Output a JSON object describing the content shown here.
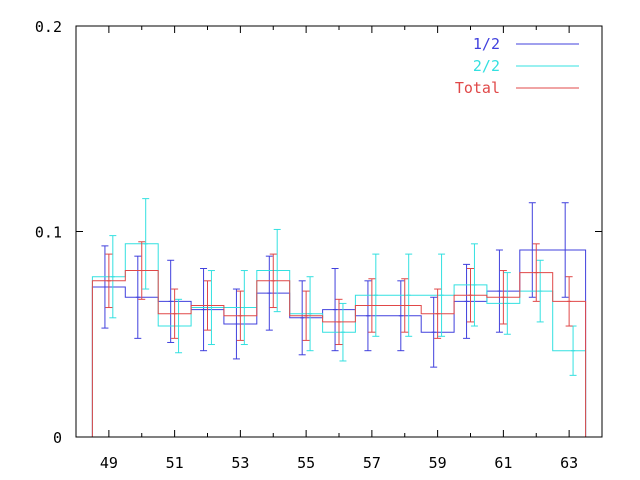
{
  "chart_data": {
    "type": "line",
    "style": "step histogram with error bars",
    "title": "",
    "xlabel": "",
    "ylabel": "",
    "xlim": [
      48,
      64
    ],
    "ylim": [
      0,
      0.2
    ],
    "x_ticks": [
      "49",
      "51",
      "53",
      "55",
      "57",
      "59",
      "61",
      "63"
    ],
    "y_ticks": [
      "0",
      "0.1",
      "0.2"
    ],
    "grid": false,
    "legend_position": "top-right",
    "x": [
      49,
      50,
      51,
      52,
      53,
      54,
      55,
      56,
      57,
      58,
      59,
      60,
      61,
      62,
      63
    ],
    "series": [
      {
        "name": "1/2",
        "color": "#4040dd",
        "values": [
          0.073,
          0.068,
          0.066,
          0.062,
          0.055,
          0.07,
          0.058,
          0.062,
          0.059,
          0.059,
          0.051,
          0.066,
          0.071,
          0.091,
          0.091
        ],
        "errors": [
          0.02,
          0.02,
          0.02,
          0.02,
          0.017,
          0.018,
          0.018,
          0.02,
          0.017,
          0.017,
          0.017,
          0.018,
          0.02,
          0.023,
          0.023
        ]
      },
      {
        "name": "2/2",
        "color": "#33e0e0",
        "values": [
          0.078,
          0.094,
          0.054,
          0.063,
          0.063,
          0.081,
          0.06,
          0.051,
          0.069,
          0.069,
          0.069,
          0.074,
          0.065,
          0.071,
          0.042
        ],
        "errors": [
          0.02,
          0.022,
          0.013,
          0.018,
          0.018,
          0.02,
          0.018,
          0.014,
          0.02,
          0.02,
          0.02,
          0.02,
          0.015,
          0.015,
          0.012
        ]
      },
      {
        "name": "Total",
        "color": "#e04848",
        "values": [
          0.076,
          0.081,
          0.06,
          0.064,
          0.059,
          0.076,
          0.059,
          0.056,
          0.064,
          0.064,
          0.06,
          0.069,
          0.068,
          0.08,
          0.066
        ],
        "errors": [
          0.013,
          0.014,
          0.012,
          0.012,
          0.012,
          0.013,
          0.012,
          0.011,
          0.013,
          0.013,
          0.012,
          0.013,
          0.013,
          0.014,
          0.012
        ]
      }
    ]
  }
}
